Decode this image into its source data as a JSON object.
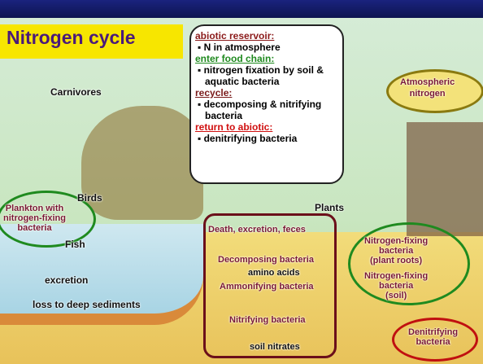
{
  "title": "Nitrogen cycle",
  "callout": {
    "sections": [
      {
        "heading": "abiotic reservoir:",
        "items": [
          "N in atmosphere"
        ]
      },
      {
        "heading": "enter food chain:",
        "items": [
          "nitrogen fixation by soil & aquatic bacteria"
        ]
      },
      {
        "heading": "recycle:",
        "items": [
          "decomposing & nitrifying bacteria"
        ]
      },
      {
        "heading": "return to abiotic:",
        "items": [
          "denitrifying bacteria"
        ]
      }
    ]
  },
  "labels": {
    "carnivores": "Carnivores",
    "birds": "Birds",
    "fish": "Fish",
    "excretion": "excretion",
    "sediments": "loss to deep sediments",
    "plankton": [
      "Plankton with",
      "nitrogen-fixing",
      "bacteria"
    ],
    "atmospheric": [
      "Atmospheric",
      "nitrogen"
    ],
    "plants": "Plants",
    "death": "Death, excretion, feces",
    "decomposing": "Decomposing bacteria",
    "amino": "amino acids",
    "ammonifying": "Ammonifying bacteria",
    "nitrifying": "Nitrifying bacteria",
    "nitrates": "soil nitrates",
    "fix_roots": [
      "Nitrogen-fixing",
      "bacteria",
      "(plant roots)"
    ],
    "fix_soil": [
      "Nitrogen-fixing",
      "bacteria",
      "(soil)"
    ],
    "denitrifying": [
      "Denitrifying",
      "bacteria"
    ]
  }
}
